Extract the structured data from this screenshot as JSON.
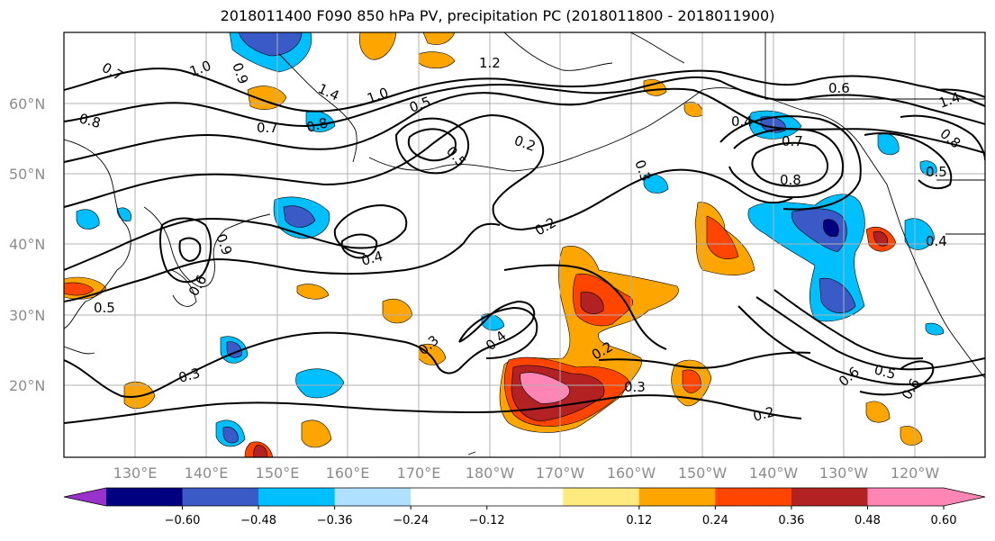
{
  "title": "2018011400 F090 850 hPa PV, precipitation PC (2018011800 - 2018011900)",
  "lat_labels": [
    "60°N",
    "50°N",
    "40°N",
    "30°N",
    "20°N"
  ],
  "lon_labels": [
    "130°E",
    "140°E",
    "150°E",
    "160°E",
    "170°E",
    "180°W",
    "170°W",
    "160°W",
    "150°W",
    "140°W",
    "130°W",
    "120°W"
  ],
  "colorbar": {
    "colors": [
      "#9932CC",
      "#000080",
      "#3A5BC7",
      "#00BFFF",
      "#B0E0FF",
      "#FFFFFF",
      "#FFFFFF",
      "#FFEA80",
      "#FFA500",
      "#FF4500",
      "#B22222",
      "#FF85B4",
      "#FF85B4"
    ],
    "tick_labels": [
      "−0.60",
      "−0.48",
      "−0.36",
      "−0.24",
      "−0.12",
      "0.12",
      "0.24",
      "0.36",
      "0.48",
      "0.60"
    ]
  },
  "contour_labels": [
    {
      "text": "0.7"
    },
    {
      "text": "1.0"
    },
    {
      "text": "0.9"
    },
    {
      "text": "1.4"
    },
    {
      "text": "1.0"
    },
    {
      "text": "1.2"
    },
    {
      "text": "0.8"
    },
    {
      "text": "0.7"
    },
    {
      "text": "0.8"
    },
    {
      "text": "0.5"
    },
    {
      "text": "0.5"
    },
    {
      "text": "0.2"
    },
    {
      "text": "0.3"
    },
    {
      "text": "0.4"
    },
    {
      "text": "0.7"
    },
    {
      "text": "0.8"
    },
    {
      "text": "0.6"
    },
    {
      "text": "1.4"
    },
    {
      "text": "0.8"
    },
    {
      "text": "0.5"
    },
    {
      "text": "0.2"
    },
    {
      "text": "0.4"
    },
    {
      "text": "0.4"
    },
    {
      "text": "0.5"
    },
    {
      "text": "0.6"
    },
    {
      "text": "0.3"
    },
    {
      "text": "0.4"
    },
    {
      "text": "0.3"
    },
    {
      "text": "0.2"
    },
    {
      "text": "0.3"
    },
    {
      "text": "0.2"
    },
    {
      "text": "0.6"
    },
    {
      "text": "0.5"
    },
    {
      "text": "0.6"
    },
    {
      "text": "0.9"
    }
  ]
}
